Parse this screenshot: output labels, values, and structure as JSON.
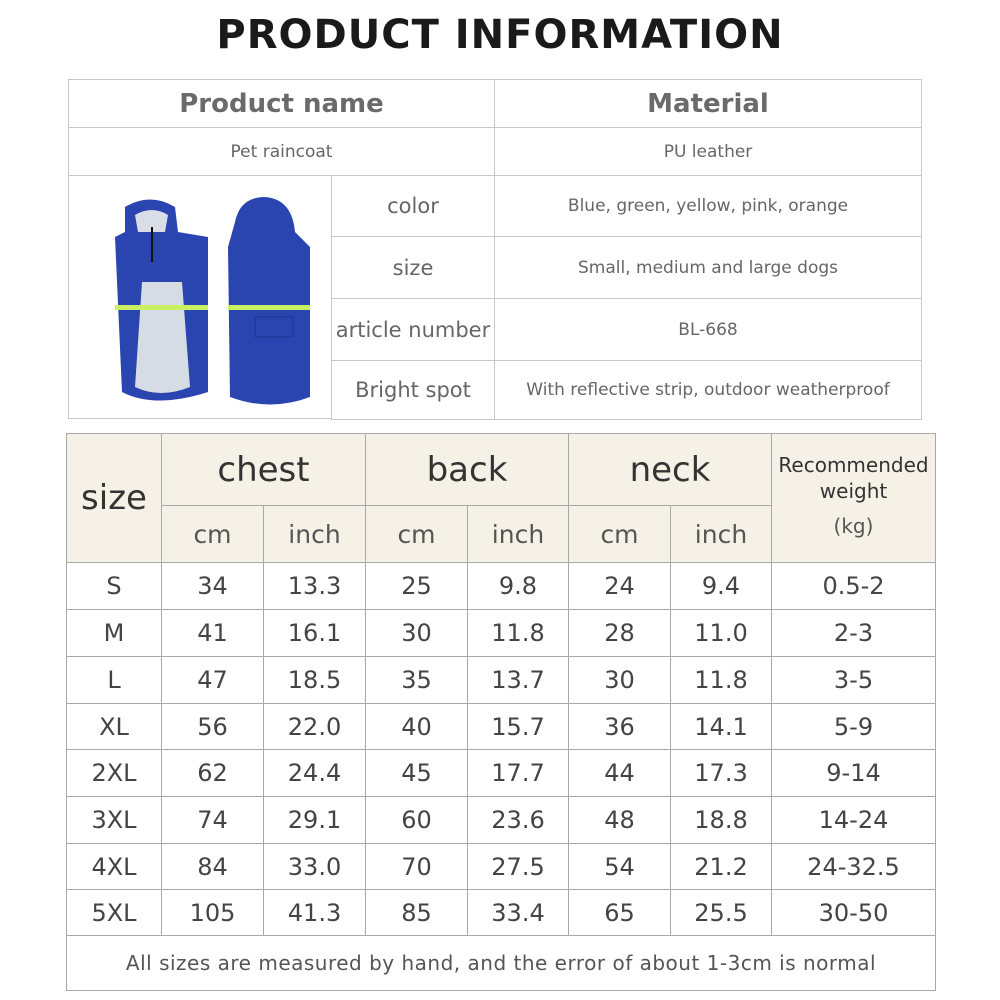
{
  "title": "PRODUCT INFORMATION",
  "info": {
    "headers": [
      "Product name",
      "Material"
    ],
    "name": "Pet raincoat",
    "material": "PU leather",
    "image_alt": "blue pet raincoat front and back",
    "rows": [
      {
        "label": "color",
        "value": "Blue,  green,  yellow,  pink,  orange"
      },
      {
        "label": "size",
        "value": "Small, medium and large dogs"
      },
      {
        "label": "article number",
        "value": "BL-668"
      },
      {
        "label": "Bright spot",
        "value": "With reflective strip, outdoor weatherproof"
      }
    ]
  },
  "size_table": {
    "size_label": "size",
    "groups": [
      "chest",
      "back",
      "neck"
    ],
    "units": [
      "cm",
      "inch"
    ],
    "weight_label": "Recommended weight",
    "weight_unit": "(kg)",
    "rows": [
      [
        "S",
        "34",
        "13.3",
        "25",
        "9.8",
        "24",
        "9.4",
        "0.5-2"
      ],
      [
        "M",
        "41",
        "16.1",
        "30",
        "11.8",
        "28",
        "11.0",
        "2-3"
      ],
      [
        "L",
        "47",
        "18.5",
        "35",
        "13.7",
        "30",
        "11.8",
        "3-5"
      ],
      [
        "XL",
        "56",
        "22.0",
        "40",
        "15.7",
        "36",
        "14.1",
        "5-9"
      ],
      [
        "2XL",
        "62",
        "24.4",
        "45",
        "17.7",
        "44",
        "17.3",
        "9-14"
      ],
      [
        "3XL",
        "74",
        "29.1",
        "60",
        "23.6",
        "48",
        "18.8",
        "14-24"
      ],
      [
        "4XL",
        "84",
        "33.0",
        "70",
        "27.5",
        "54",
        "21.2",
        "24-32.5"
      ],
      [
        "5XL",
        "105",
        "41.3",
        "85",
        "33.4",
        "65",
        "25.5",
        "30-50"
      ]
    ],
    "footnote": "All sizes are measured by hand, and the error of about 1-3cm is normal"
  },
  "colors": {
    "header_bg": "#f5f1e7",
    "coat_blue": "#2a44b0",
    "reflective": "#c8f060"
  }
}
